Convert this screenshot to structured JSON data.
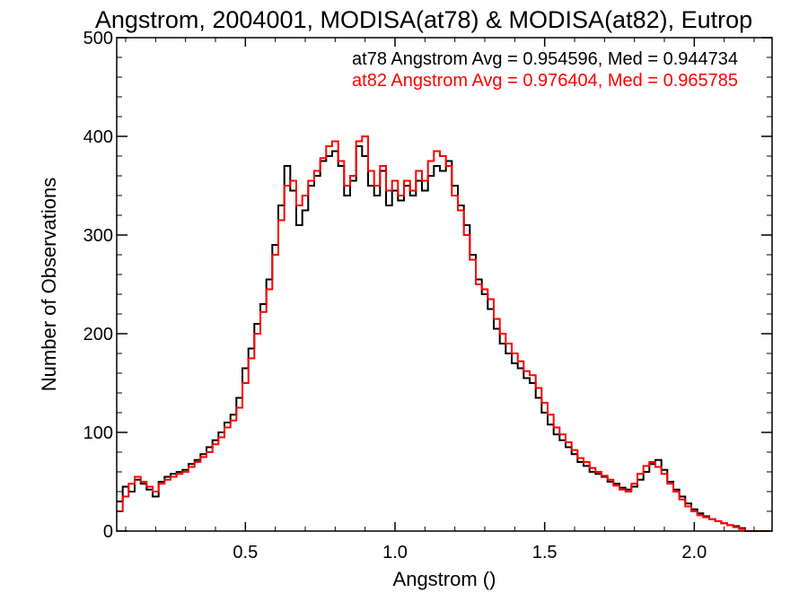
{
  "chart_data": {
    "type": "line",
    "step": true,
    "title": "Angstrom, 2004001, MODISA(at78) & MODISA(at82), Eutrop",
    "xlabel": "Angstrom ()",
    "ylabel": "Number of Observations",
    "xlim": [
      0.07,
      2.26
    ],
    "ylim": [
      0,
      500
    ],
    "xticks": [
      0.5,
      1.0,
      1.5,
      2.0
    ],
    "xtick_labels": [
      "0.5",
      "1.0",
      "1.5",
      "2.0"
    ],
    "yticks": [
      0,
      100,
      200,
      300,
      400,
      500
    ],
    "ytick_labels": [
      "0",
      "100",
      "200",
      "300",
      "400",
      "500"
    ],
    "grid": false,
    "legend": "top-right",
    "series": [
      {
        "name": "at78",
        "label": "at78 Angstrom Avg = 0.954596, Med = 0.944734",
        "color": "#000000",
        "x": [
          0.08,
          0.1,
          0.12,
          0.14,
          0.16,
          0.18,
          0.2,
          0.22,
          0.24,
          0.26,
          0.28,
          0.3,
          0.32,
          0.34,
          0.36,
          0.38,
          0.4,
          0.42,
          0.44,
          0.46,
          0.48,
          0.5,
          0.52,
          0.54,
          0.56,
          0.58,
          0.6,
          0.62,
          0.64,
          0.66,
          0.68,
          0.7,
          0.72,
          0.74,
          0.76,
          0.78,
          0.8,
          0.82,
          0.84,
          0.86,
          0.88,
          0.9,
          0.92,
          0.94,
          0.96,
          0.98,
          1.0,
          1.02,
          1.04,
          1.06,
          1.08,
          1.1,
          1.12,
          1.14,
          1.16,
          1.18,
          1.2,
          1.22,
          1.24,
          1.26,
          1.28,
          1.3,
          1.32,
          1.34,
          1.36,
          1.38,
          1.4,
          1.42,
          1.44,
          1.46,
          1.48,
          1.5,
          1.52,
          1.54,
          1.56,
          1.58,
          1.6,
          1.62,
          1.64,
          1.66,
          1.68,
          1.7,
          1.72,
          1.74,
          1.76,
          1.78,
          1.8,
          1.82,
          1.84,
          1.86,
          1.88,
          1.9,
          1.92,
          1.94,
          1.96,
          1.98,
          2.0,
          2.02,
          2.04,
          2.06,
          2.08,
          2.1,
          2.12,
          2.14,
          2.16,
          2.18,
          2.2,
          2.22,
          2.24
        ],
        "y": [
          30,
          45,
          40,
          52,
          48,
          42,
          35,
          50,
          55,
          58,
          60,
          62,
          68,
          72,
          78,
          85,
          92,
          100,
          110,
          118,
          135,
          165,
          185,
          210,
          230,
          255,
          290,
          330,
          370,
          345,
          310,
          325,
          350,
          360,
          375,
          380,
          385,
          370,
          340,
          355,
          390,
          380,
          350,
          340,
          365,
          330,
          345,
          335,
          350,
          340,
          355,
          345,
          360,
          370,
          365,
          375,
          350,
          330,
          310,
          280,
          255,
          240,
          225,
          205,
          190,
          180,
          170,
          165,
          155,
          150,
          135,
          120,
          108,
          98,
          92,
          85,
          78,
          70,
          66,
          60,
          58,
          55,
          50,
          48,
          44,
          42,
          45,
          52,
          60,
          68,
          72,
          62,
          50,
          42,
          35,
          28,
          22,
          18,
          15,
          12,
          10,
          8,
          6,
          5,
          3,
          0,
          0,
          0,
          0
        ]
      },
      {
        "name": "at82",
        "label": "at82 Angstrom Avg = 0.976404, Med = 0.965785",
        "color": "#ff0000",
        "x": [
          0.08,
          0.1,
          0.12,
          0.14,
          0.16,
          0.18,
          0.2,
          0.22,
          0.24,
          0.26,
          0.28,
          0.3,
          0.32,
          0.34,
          0.36,
          0.38,
          0.4,
          0.42,
          0.44,
          0.46,
          0.48,
          0.5,
          0.52,
          0.54,
          0.56,
          0.58,
          0.6,
          0.62,
          0.64,
          0.66,
          0.68,
          0.7,
          0.72,
          0.74,
          0.76,
          0.78,
          0.8,
          0.82,
          0.84,
          0.86,
          0.88,
          0.9,
          0.92,
          0.94,
          0.96,
          0.98,
          1.0,
          1.02,
          1.04,
          1.06,
          1.08,
          1.1,
          1.12,
          1.14,
          1.16,
          1.18,
          1.2,
          1.22,
          1.24,
          1.26,
          1.28,
          1.3,
          1.32,
          1.34,
          1.36,
          1.38,
          1.4,
          1.42,
          1.44,
          1.46,
          1.48,
          1.5,
          1.52,
          1.54,
          1.56,
          1.58,
          1.6,
          1.62,
          1.64,
          1.66,
          1.68,
          1.7,
          1.72,
          1.74,
          1.76,
          1.78,
          1.8,
          1.82,
          1.84,
          1.86,
          1.88,
          1.9,
          1.92,
          1.94,
          1.96,
          1.98,
          2.0,
          2.02,
          2.04,
          2.06,
          2.08,
          2.1,
          2.12,
          2.14,
          2.16,
          2.18,
          2.2,
          2.22,
          2.24
        ],
        "y": [
          20,
          35,
          48,
          55,
          50,
          45,
          40,
          48,
          52,
          55,
          58,
          60,
          65,
          70,
          75,
          80,
          88,
          95,
          105,
          112,
          125,
          150,
          175,
          200,
          222,
          245,
          280,
          315,
          350,
          355,
          330,
          340,
          355,
          365,
          378,
          390,
          395,
          375,
          350,
          360,
          395,
          400,
          365,
          350,
          370,
          345,
          355,
          340,
          355,
          345,
          365,
          355,
          375,
          385,
          380,
          370,
          340,
          325,
          300,
          275,
          250,
          245,
          235,
          215,
          200,
          190,
          180,
          172,
          162,
          158,
          145,
          130,
          118,
          105,
          98,
          90,
          82,
          74,
          70,
          64,
          60,
          56,
          52,
          46,
          42,
          40,
          48,
          58,
          66,
          70,
          65,
          58,
          48,
          40,
          32,
          25,
          20,
          16,
          14,
          12,
          10,
          8,
          6,
          4,
          2,
          0,
          0,
          0,
          0
        ]
      }
    ]
  }
}
